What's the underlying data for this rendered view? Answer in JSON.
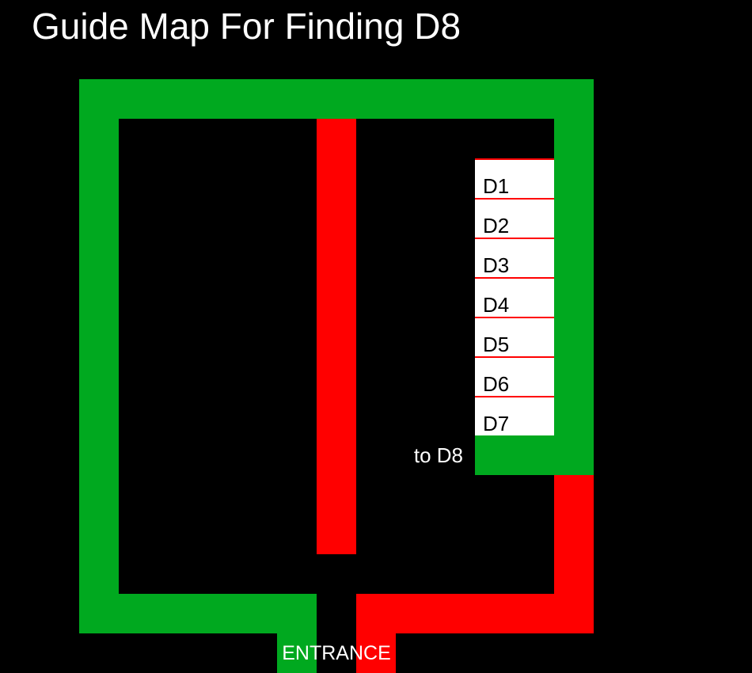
{
  "title": "Guide Map For Finding D8",
  "colors": {
    "background": "#000000",
    "guide_path": "#00a91f",
    "wall": "#ff0000",
    "room": "#ffffff",
    "text": "#ffffff"
  },
  "rooms": [
    "D1",
    "D2",
    "D3",
    "D4",
    "D5",
    "D6",
    "D7"
  ],
  "direction_label": "to D8",
  "entrance_label": "ENTRANCE"
}
